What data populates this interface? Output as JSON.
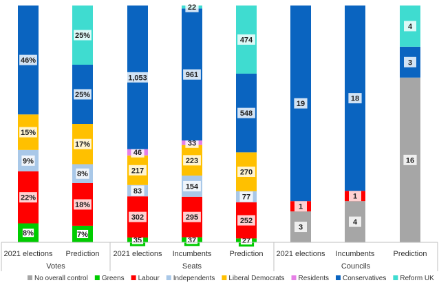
{
  "chart_data": {
    "type": "bar",
    "stacked": true,
    "legend_position": "bottom",
    "legend": [
      "No overall control",
      "Greens",
      "Labour",
      "Independents",
      "Liberal Democrats",
      "Residents",
      "Conservatives",
      "Reform UK"
    ],
    "colors": {
      "No overall control": "#a6a6a6",
      "Greens": "#00cc00",
      "Labour": "#ff0000",
      "Independents": "#a9c8e8",
      "Liberal Democrats": "#ffc000",
      "Residents": "#e680e6",
      "Conservatives": "#0a64c0",
      "Reform UK": "#3fdcd0"
    },
    "groups": [
      {
        "name": "Votes",
        "categories": [
          "2021 elections",
          "Prediction"
        ]
      },
      {
        "name": "Seats",
        "categories": [
          "2021 elections",
          "Incumbents",
          "Prediction"
        ]
      },
      {
        "name": "Councils",
        "categories": [
          "2021 elections",
          "Incumbents",
          "Prediction"
        ]
      }
    ],
    "bars": [
      {
        "group": "Votes",
        "category": "2021 elections",
        "segments": [
          {
            "party": "Greens",
            "value": 8,
            "label": "8%"
          },
          {
            "party": "Labour",
            "value": 22,
            "label": "22%"
          },
          {
            "party": "Independents",
            "value": 9,
            "label": "9%"
          },
          {
            "party": "Liberal Democrats",
            "value": 15,
            "label": "15%"
          },
          {
            "party": "Conservatives",
            "value": 46,
            "label": "46%"
          }
        ]
      },
      {
        "group": "Votes",
        "category": "Prediction",
        "segments": [
          {
            "party": "Greens",
            "value": 7,
            "label": "7%"
          },
          {
            "party": "Labour",
            "value": 18,
            "label": "18%"
          },
          {
            "party": "Independents",
            "value": 8,
            "label": "8%"
          },
          {
            "party": "Liberal Democrats",
            "value": 17,
            "label": "17%"
          },
          {
            "party": "Conservatives",
            "value": 25,
            "label": "25%"
          },
          {
            "party": "Reform UK",
            "value": 25,
            "label": "25%"
          }
        ]
      },
      {
        "group": "Seats",
        "category": "2021 elections",
        "segments": [
          {
            "party": "Greens",
            "value": 35,
            "label": "35"
          },
          {
            "party": "Labour",
            "value": 302,
            "label": "302"
          },
          {
            "party": "Independents",
            "value": 83,
            "label": "83"
          },
          {
            "party": "Liberal Democrats",
            "value": 217,
            "label": "217"
          },
          {
            "party": "Residents",
            "value": 46,
            "label": "46"
          },
          {
            "party": "Conservatives",
            "value": 1053,
            "label": "1,053"
          }
        ]
      },
      {
        "group": "Seats",
        "category": "Incumbents",
        "segments": [
          {
            "party": "Greens",
            "value": 37,
            "label": "37"
          },
          {
            "party": "Labour",
            "value": 295,
            "label": "295"
          },
          {
            "party": "Independents",
            "value": 154,
            "label": "154"
          },
          {
            "party": "Liberal Democrats",
            "value": 223,
            "label": "223"
          },
          {
            "party": "Residents",
            "value": 33,
            "label": "33"
          },
          {
            "party": "Conservatives",
            "value": 961,
            "label": "961"
          },
          {
            "party": "Reform UK",
            "value": 22,
            "label": "22"
          }
        ]
      },
      {
        "group": "Seats",
        "category": "Prediction",
        "segments": [
          {
            "party": "Greens",
            "value": 27,
            "label": "27"
          },
          {
            "party": "Labour",
            "value": 252,
            "label": "252"
          },
          {
            "party": "Independents",
            "value": 77,
            "label": "77"
          },
          {
            "party": "Liberal Democrats",
            "value": 270,
            "label": "270"
          },
          {
            "party": "Conservatives",
            "value": 548,
            "label": "548"
          },
          {
            "party": "Reform UK",
            "value": 474,
            "label": "474"
          }
        ]
      },
      {
        "group": "Councils",
        "category": "2021 elections",
        "segments": [
          {
            "party": "No overall control",
            "value": 3,
            "label": "3"
          },
          {
            "party": "Labour",
            "value": 1,
            "label": "1"
          },
          {
            "party": "Conservatives",
            "value": 19,
            "label": "19"
          }
        ]
      },
      {
        "group": "Councils",
        "category": "Incumbents",
        "segments": [
          {
            "party": "No overall control",
            "value": 4,
            "label": "4"
          },
          {
            "party": "Labour",
            "value": 1,
            "label": "1"
          },
          {
            "party": "Conservatives",
            "value": 18,
            "label": "18"
          }
        ]
      },
      {
        "group": "Councils",
        "category": "Prediction",
        "segments": [
          {
            "party": "No overall control",
            "value": 16,
            "label": "16"
          },
          {
            "party": "Conservatives",
            "value": 3,
            "label": "3"
          },
          {
            "party": "Reform UK",
            "value": 4,
            "label": "4"
          }
        ]
      }
    ]
  }
}
